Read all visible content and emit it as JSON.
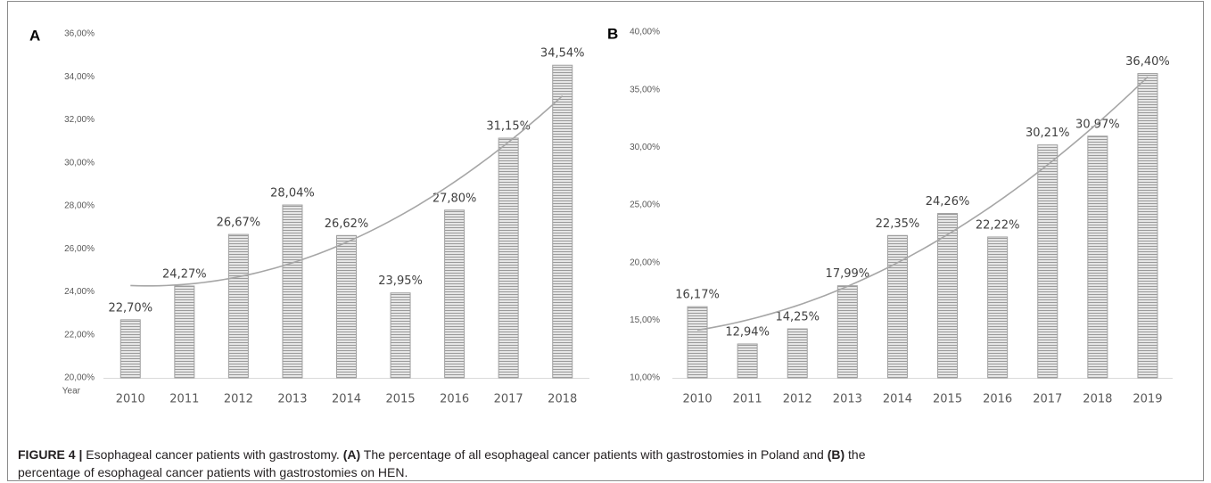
{
  "chart_data": [
    {
      "type": "bar",
      "panel": "A",
      "x_label": "Year",
      "categories": [
        "2010",
        "2011",
        "2012",
        "2013",
        "2014",
        "2015",
        "2016",
        "2017",
        "2018"
      ],
      "values": [
        22.7,
        24.27,
        26.67,
        28.04,
        26.62,
        23.95,
        27.8,
        31.15,
        34.54
      ],
      "value_labels": [
        "22,70%",
        "24,27%",
        "26,67%",
        "28,04%",
        "26,62%",
        "23,95%",
        "27,80%",
        "31,15%",
        "34,54%"
      ],
      "color": "#a0a0a0",
      "ylim": [
        20,
        36
      ],
      "yticks": [
        {
          "value": 20,
          "label": "20,00%"
        },
        {
          "value": 22,
          "label": "22,00%"
        },
        {
          "value": 24,
          "label": "24,00%"
        },
        {
          "value": 26,
          "label": "26,00%"
        },
        {
          "value": 28,
          "label": "28,00%"
        },
        {
          "value": 30,
          "label": "30,00%"
        },
        {
          "value": 32,
          "label": "32,00%"
        },
        {
          "value": 34,
          "label": "34,00%"
        },
        {
          "value": 36,
          "label": "36,00%"
        }
      ],
      "grid": false,
      "trendline": {
        "type": "polynomial",
        "order": 2,
        "color": "#a6a6a6"
      }
    },
    {
      "type": "bar",
      "panel": "B",
      "categories": [
        "2010",
        "2011",
        "2012",
        "2013",
        "2014",
        "2015",
        "2016",
        "2017",
        "2018",
        "2019"
      ],
      "values": [
        16.17,
        12.94,
        14.25,
        17.99,
        22.35,
        24.26,
        22.22,
        30.21,
        30.97,
        36.4
      ],
      "value_labels": [
        "16,17%",
        "12,94%",
        "14,25%",
        "17,99%",
        "22,35%",
        "24,26%",
        "22,22%",
        "30,21%",
        "30,97%",
        "36,40%"
      ],
      "color": "#a0a0a0",
      "ylim": [
        10,
        40
      ],
      "yticks": [
        {
          "value": 10,
          "label": "10,00%"
        },
        {
          "value": 15,
          "label": "15,00%"
        },
        {
          "value": 20,
          "label": "20,00%"
        },
        {
          "value": 25,
          "label": "25,00%"
        },
        {
          "value": 30,
          "label": "30,00%"
        },
        {
          "value": 35,
          "label": "35,00%"
        },
        {
          "value": 40,
          "label": "40,00%"
        }
      ],
      "grid": false,
      "trendline": {
        "type": "polynomial",
        "order": 2,
        "color": "#a6a6a6"
      }
    }
  ],
  "caption": {
    "lines": [
      [
        {
          "text": "FIGURE 4 |",
          "bold": true
        },
        {
          "text": " Esophageal cancer patients with gastrostomy. ",
          "bold": false
        },
        {
          "text": "(A)",
          "bold": true
        },
        {
          "text": " The percentage of all esophageal cancer patients with gastrostomies in Poland and ",
          "bold": false
        },
        {
          "text": "(B)",
          "bold": true
        },
        {
          "text": " the",
          "bold": false
        }
      ],
      [
        {
          "text": "percentage of esophageal cancer patients with gastrostomies on HEN.",
          "bold": false
        }
      ]
    ]
  }
}
